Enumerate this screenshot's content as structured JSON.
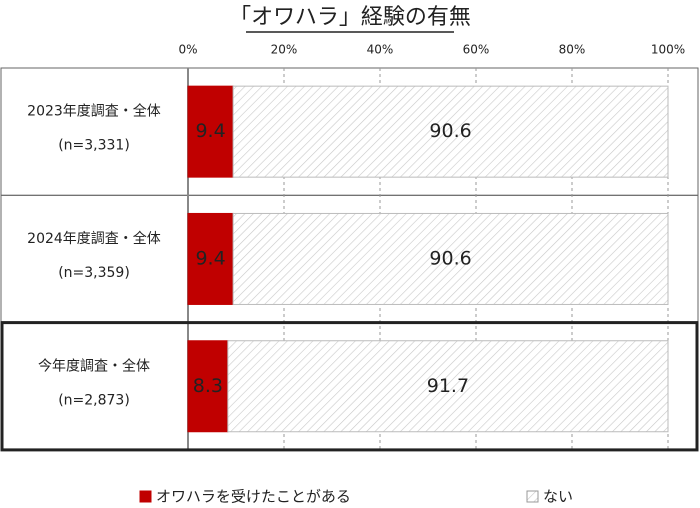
{
  "chart_data": {
    "type": "stacked-bar-horizontal",
    "title": "「オワハラ」経験の有無",
    "categories": [
      "2023年度調査・全体",
      "2024年度調査・全体",
      "今年度調査・全体"
    ],
    "sample_sizes": [
      "(n=3,331)",
      "(n=3,359)",
      "(n=2,873)"
    ],
    "series": [
      {
        "name": "オワハラを受けたことがある",
        "color": "#c00000",
        "values": [
          9.4,
          9.4,
          8.3
        ]
      },
      {
        "name": "ない",
        "color": "hatch",
        "values": [
          90.6,
          90.6,
          91.7
        ]
      }
    ],
    "xlim": [
      0,
      100
    ],
    "xticks": [
      {
        "value": 0,
        "label": "0%"
      },
      {
        "value": 20,
        "label": "20%"
      },
      {
        "value": 40,
        "label": "40%"
      },
      {
        "value": 60,
        "label": "60%"
      },
      {
        "value": 80,
        "label": "80%"
      },
      {
        "value": 100,
        "label": "100%"
      }
    ],
    "grid": true,
    "highlight_index": 2,
    "legend": "bottom"
  }
}
